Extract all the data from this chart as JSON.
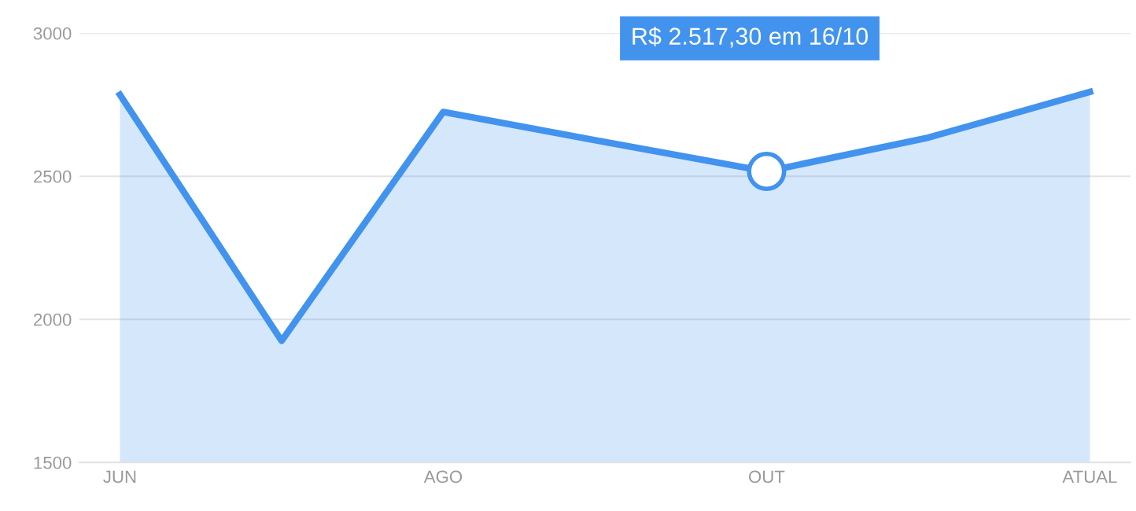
{
  "chart_data": {
    "type": "area",
    "categories": [
      "JUN",
      null,
      "AGO",
      null,
      "OUT",
      null,
      "ATUAL"
    ],
    "series": [
      {
        "color": "#4293ee",
        "values": [
          2785,
          1925,
          2725,
          2620,
          2517,
          2635,
          2795
        ]
      }
    ],
    "ylim": [
      1500,
      3000
    ],
    "yticks": [
      1500,
      2000,
      2500,
      3000
    ],
    "grid": "y",
    "marker": "none",
    "annotations": [
      "R$ 2.517,30 em 16/10"
    ]
  }
}
